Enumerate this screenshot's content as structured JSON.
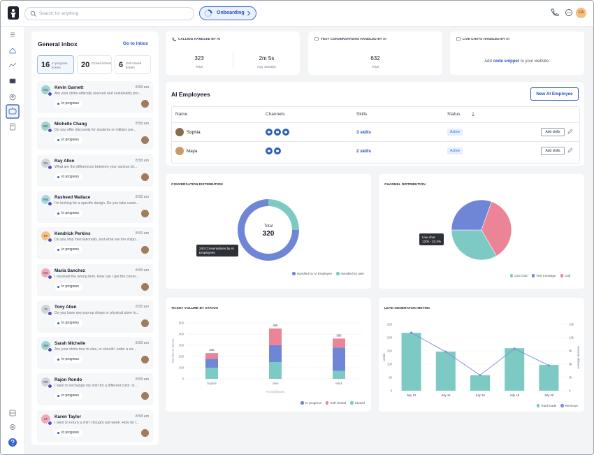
{
  "topbar": {
    "search_placeholder": "Search for anything",
    "onboarding": "Onboarding",
    "avatar": "CA"
  },
  "inbox": {
    "title": "General inbox",
    "link": "Go to inbox",
    "tabs": [
      {
        "count": 16,
        "label": "In progress tickets"
      },
      {
        "count": 20,
        "label": "Closed tickets"
      },
      {
        "count": 6,
        "label": "Soft closed tickets"
      }
    ],
    "conversations": [
      {
        "initials": "KG",
        "name": "Kevin Garnett",
        "time": "8:58 am",
        "message": "Are your shirts ethically sourced and sustainably pro...",
        "status": "In progress"
      },
      {
        "initials": "MC",
        "name": "Michelle Chang",
        "time": "8:58 am",
        "message": "Do you offer discounts for students or military per...",
        "status": "In progress"
      },
      {
        "initials": "RA",
        "name": "Ray Allen",
        "time": "8:58 am",
        "message": "What are the differences between your various sti...",
        "status": "In progress"
      },
      {
        "initials": "RW",
        "name": "Rasheed Wallace",
        "time": "8:58 am",
        "message": "I'm looking for a specific design. Do you take custo...",
        "status": "In progress"
      },
      {
        "initials": "KP",
        "name": "Kendrick Perkins",
        "time": "8:59 am",
        "message": "Do you ship internationally, and what are the shipp...",
        "status": "In progress"
      },
      {
        "initials": "MS",
        "name": "Maria Sanchez",
        "time": "8:58 am",
        "message": "I received the wrong item. How can I get the correc...",
        "status": "In progress"
      },
      {
        "initials": "TA",
        "name": "Tony Allen",
        "time": "8:58 am",
        "message": "Do you have any pop-up shops or physical store lo...",
        "status": "In progress"
      },
      {
        "initials": "SM",
        "name": "Sarah Michelle",
        "time": "8:58 am",
        "message": "Are your shirts true to size, or should I order a siz...",
        "status": "In progress"
      },
      {
        "initials": "RR",
        "name": "Rajon Rondo",
        "time": "8:58 am",
        "message": "I want to exchange my shirt for a different color. Is...",
        "status": "In progress"
      },
      {
        "initials": "KT",
        "name": "Karen Taylor",
        "time": "8:58 am",
        "message": "I want to return a shirt I bought last week. How do I...",
        "status": "In progress"
      }
    ]
  },
  "stats": {
    "calls": {
      "title": "CALLING HANDLED BY AI",
      "metrics": [
        {
          "value": "323",
          "label": "Total"
        },
        {
          "value": "2m 5s",
          "label": "Avg. duration"
        }
      ]
    },
    "texts": {
      "title": "TEXT CONVERSATIONS HANDLED BY AI",
      "metrics": [
        {
          "value": "632",
          "label": "Total"
        }
      ]
    },
    "chats": {
      "title": "LIVE CHATS HANDLED BY AI",
      "text_before": "Add",
      "link": "code snippet",
      "text_after": "to your website."
    }
  },
  "ai_employees": {
    "title": "AI Employees",
    "button": "New AI Employee",
    "columns": [
      "Name",
      "Channels",
      "Skills",
      "Status"
    ],
    "rows": [
      {
        "name": "Sophia",
        "skills": "3 skills",
        "status": "Active",
        "action": "Add skills"
      },
      {
        "name": "Maya",
        "skills": "2 skills",
        "status": "Active",
        "action": "Add skills"
      }
    ]
  },
  "charts": [
    {
      "type": "donut",
      "title": "CONVERSATION DISTRIBUTION",
      "center_label": "Total",
      "total": 320,
      "annotation": "240 Conversations by AI Employees",
      "categories": [
        "Handled by AI Employee",
        "Handled by user"
      ],
      "values": [
        240,
        80
      ],
      "colors": [
        "#6f86d6",
        "#7ccac3"
      ]
    },
    {
      "type": "pie",
      "title": "CHANNEL DISTRIBUTION",
      "annotation": [
        "Live chat",
        "120k - 33.3%"
      ],
      "categories": [
        "Live chat",
        "Text message",
        "Call"
      ],
      "values": [
        33.3,
        30.5,
        36.2
      ],
      "colors": [
        "#7ccac3",
        "#6f86d6",
        "#ec8497"
      ]
    },
    {
      "type": "stacked_bar",
      "title": "TICKET VOLUME BY STATUS",
      "categories": [
        "Sophia",
        "Jane",
        "Mark"
      ],
      "series": [
        {
          "name": "In progress",
          "color": "#6f86d6",
          "values": [
            80,
            150,
            210
          ]
        },
        {
          "name": "Soft closed",
          "color": "#ec8497",
          "values": [
            50,
            150,
            80
          ]
        },
        {
          "name": "Closed",
          "color": "#7ccac3",
          "values": [
            100,
            150,
            70
          ]
        }
      ],
      "total_labels": [
        230,
        450,
        360
      ],
      "ylim": [
        0,
        500
      ],
      "yticks": [
        0,
        100,
        200,
        300,
        400,
        500
      ],
      "ylabel": "Number of Tickets",
      "xlabel": "AI Employees"
    },
    {
      "type": "bar_line",
      "title": "LEAD GENERATION METRIC",
      "categories": [
        "July 12",
        "July 14",
        "July 16",
        "July 18",
        "July 20"
      ],
      "series": [
        {
          "name": "Total leads",
          "color": "#7ccac3",
          "values": [
            218,
            147,
            58,
            160,
            97
          ]
        },
        {
          "name": "Revenue",
          "color": "#7b8fd6",
          "axis": "y2",
          "values": [
            13100,
            8800,
            3500,
            9500,
            5700
          ]
        }
      ],
      "ylim": [
        0,
        250
      ],
      "yticks": [
        0,
        50,
        100,
        150,
        200,
        250
      ],
      "y2lim": [
        0,
        15000
      ],
      "y2ticks": [
        0,
        {
          "value": 3000,
          "label": "3k"
        },
        {
          "value": 6000,
          "label": "6k"
        },
        {
          "value": 9000,
          "label": "9k"
        },
        {
          "value": 12000,
          "label": "12k"
        },
        {
          "value": 15000,
          "label": "15k"
        }
      ],
      "ylabel": "Leads",
      "y2label": "Average revenue"
    }
  ]
}
